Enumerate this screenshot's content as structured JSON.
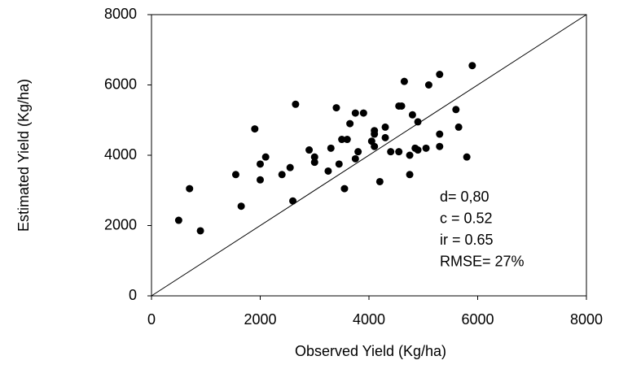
{
  "chart_data": {
    "type": "scatter",
    "x_label": "Observed Yield (Kg/ha)",
    "y_label": "Estimated Yield  (Kg/ha)",
    "annotations": [
      "d= 0,80",
      "c = 0.52",
      "ir = 0.65",
      "RMSE= 27%"
    ],
    "color": "#000000",
    "xlim": [
      0,
      8000
    ],
    "ylim": [
      0,
      8000
    ],
    "xticks": [
      0,
      2000,
      4000,
      6000,
      8000
    ],
    "yticks": [
      0,
      2000,
      4000,
      6000,
      8000
    ],
    "reference_line": true,
    "x": [
      500,
      700,
      900,
      1550,
      1650,
      1900,
      2000,
      2000,
      2100,
      2400,
      2550,
      2600,
      2650,
      2900,
      3000,
      3000,
      3250,
      3300,
      3400,
      3450,
      3500,
      3550,
      3600,
      3650,
      3750,
      3750,
      3800,
      3900,
      4050,
      4100,
      4100,
      4100,
      4200,
      4300,
      4300,
      4400,
      4550,
      4550,
      4600,
      4650,
      4750,
      4750,
      4800,
      4850,
      4900,
      4900,
      5050,
      5100,
      5300,
      5300,
      5300,
      5600,
      5650,
      5800,
      5900
    ],
    "values": [
      2150,
      3050,
      1850,
      3450,
      2550,
      4750,
      3750,
      3300,
      3950,
      3450,
      3650,
      2700,
      5450,
      4150,
      3800,
      3950,
      3550,
      4200,
      5350,
      3750,
      4450,
      3050,
      4450,
      4900,
      3900,
      5200,
      4100,
      5200,
      4400,
      4250,
      4600,
      4700,
      3250,
      4800,
      4500,
      4100,
      4100,
      5400,
      5400,
      6100,
      3450,
      4000,
      5150,
      4200,
      4950,
      4150,
      4200,
      6000,
      6300,
      4250,
      4600,
      5300,
      4800,
      3950,
      6550
    ]
  }
}
